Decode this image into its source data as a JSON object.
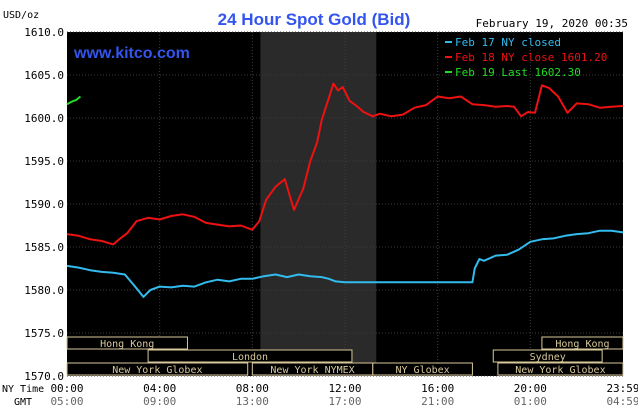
{
  "chart_data": {
    "type": "line",
    "title": "24 Hour Spot Gold (Bid)",
    "watermark": "www.kitco.com",
    "timestamp": "February 19, 2020 00:35",
    "ylabel": "USD/oz",
    "ylim": [
      1570,
      1610
    ],
    "yticks": [
      "1610.0",
      "1605.0",
      "1600.0",
      "1595.0",
      "1590.0",
      "1585.0",
      "1580.0",
      "1575.0",
      "1570.0"
    ],
    "xticks_ny": [
      "00:00",
      "04:00",
      "08:00",
      "12:00",
      "16:00",
      "20:00",
      "23:59"
    ],
    "xticks_gmt": [
      "05:00",
      "09:00",
      "13:00",
      "17:00",
      "21:00",
      "01:00",
      "04:59"
    ],
    "xaxis_label_ny": "NY Time",
    "xaxis_label_gmt": "GMT",
    "legend": [
      {
        "label": "Feb 17 NY closed",
        "color": "#33bbee"
      },
      {
        "label": "Feb 18 NY close 1601.20",
        "color": "#ee1111"
      },
      {
        "label": "Feb 19 Last 1602.30",
        "color": "#22dd22"
      }
    ],
    "series": [
      {
        "name": "Feb 17 NY closed",
        "color": "#33bbee",
        "x": [
          0,
          0.5,
          1,
          1.5,
          2,
          2.5,
          3,
          3.3,
          3.6,
          4,
          4.5,
          5,
          5.5,
          6,
          6.5,
          7,
          7.5,
          8,
          8.5,
          9,
          9.5,
          10,
          10.5,
          11,
          11.3,
          11.6,
          12,
          12.5,
          13,
          14,
          15,
          16,
          17,
          17.5,
          17.6,
          17.8,
          18,
          18.5,
          19,
          19.5,
          20,
          20.5,
          21,
          21.5,
          22,
          22.5,
          23,
          23.5,
          24
        ],
        "y": [
          1582.8,
          1582.6,
          1582.3,
          1582.1,
          1582.0,
          1581.8,
          1580.2,
          1579.2,
          1580.0,
          1580.4,
          1580.3,
          1580.5,
          1580.4,
          1580.9,
          1581.2,
          1581.0,
          1581.3,
          1581.3,
          1581.6,
          1581.8,
          1581.5,
          1581.8,
          1581.6,
          1581.5,
          1581.3,
          1581.0,
          1580.9,
          1580.9,
          1580.9,
          1580.9,
          1580.9,
          1580.9,
          1580.9,
          1580.9,
          1582.5,
          1583.6,
          1583.4,
          1584.0,
          1584.1,
          1584.7,
          1585.6,
          1585.9,
          1586.0,
          1586.3,
          1586.5,
          1586.6,
          1586.9,
          1586.9,
          1586.7
        ]
      },
      {
        "name": "Feb 18 NY close 1601.20",
        "color": "#ee1111",
        "x": [
          0,
          0.5,
          1,
          1.5,
          2,
          2.3,
          2.6,
          3,
          3.5,
          4,
          4.5,
          5,
          5.5,
          6,
          6.5,
          7,
          7.5,
          8,
          8.3,
          8.6,
          9,
          9.4,
          9.8,
          10.2,
          10.5,
          10.8,
          11,
          11.3,
          11.5,
          11.7,
          11.9,
          12.2,
          12.5,
          12.8,
          13.2,
          13.5,
          14,
          14.5,
          15,
          15.5,
          16,
          16.5,
          17,
          17.5,
          18,
          18.5,
          19,
          19.3,
          19.6,
          19.9,
          20.2,
          20.5,
          20.8,
          21.2,
          21.6,
          22,
          22.5,
          23,
          23.5,
          24
        ],
        "y": [
          1586.5,
          1586.3,
          1585.9,
          1585.7,
          1585.3,
          1586.0,
          1586.6,
          1588.0,
          1588.4,
          1588.2,
          1588.6,
          1588.8,
          1588.5,
          1587.8,
          1587.6,
          1587.4,
          1587.5,
          1587.0,
          1588.0,
          1590.5,
          1592.0,
          1592.9,
          1589.3,
          1591.8,
          1595.0,
          1597.2,
          1599.8,
          1602.3,
          1604.0,
          1603.2,
          1603.6,
          1602.0,
          1601.4,
          1600.7,
          1600.2,
          1600.5,
          1600.2,
          1600.4,
          1601.2,
          1601.5,
          1602.5,
          1602.3,
          1602.5,
          1601.6,
          1601.5,
          1601.3,
          1601.4,
          1601.3,
          1600.2,
          1600.7,
          1600.6,
          1603.8,
          1603.5,
          1602.5,
          1600.6,
          1601.7,
          1601.6,
          1601.2,
          1601.3,
          1601.4
        ]
      },
      {
        "name": "Feb 19 Last 1602.30",
        "color": "#22dd22",
        "x": [
          0,
          0.2,
          0.4,
          0.58
        ],
        "y": [
          1601.6,
          1601.9,
          1602.1,
          1602.5
        ]
      }
    ],
    "market_bars": [
      {
        "label": "Hong Kong",
        "row": 0,
        "start": 0,
        "end": 5.2
      },
      {
        "label": "Hong Kong",
        "row": 0,
        "start": 20.5,
        "end": 24
      },
      {
        "label": "London",
        "row": 1,
        "start": 3.5,
        "end": 12.3
      },
      {
        "label": "Sydney",
        "row": 1,
        "start": 18.4,
        "end": 23.1
      },
      {
        "label": "New York Globex",
        "row": 2,
        "start": 0,
        "end": 7.8
      },
      {
        "label": "New York NYMEX",
        "row": 2,
        "start": 8.0,
        "end": 13.2
      },
      {
        "label": "NY Globex",
        "row": 2,
        "start": 13.2,
        "end": 17.5
      },
      {
        "label": "New York Globex",
        "row": 2,
        "start": 18.6,
        "end": 24
      }
    ]
  }
}
